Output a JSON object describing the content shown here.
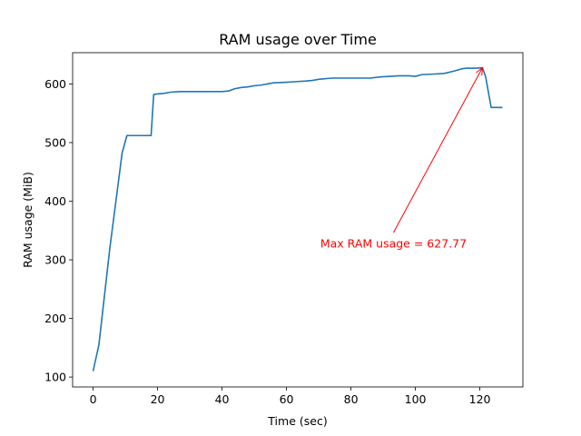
{
  "chart_data": {
    "type": "line",
    "title": "RAM usage over Time",
    "xlabel": "Time (sec)",
    "ylabel": "RAM usage (MiB)",
    "xlim": [
      -6.35,
      133.35
    ],
    "ylim": [
      83.1,
      653.4
    ],
    "xticks": [
      0,
      20,
      40,
      60,
      80,
      100,
      120
    ],
    "yticks": [
      100,
      200,
      300,
      400,
      500,
      600
    ],
    "grid": false,
    "series": [
      {
        "color": "#1f77b4",
        "x": [
          0,
          1.8,
          5.2,
          9,
          10.5,
          14,
          18,
          18.8,
          19.8,
          22,
          24,
          27,
          31,
          36,
          40,
          42,
          44,
          46,
          48,
          50,
          52,
          56,
          60,
          63,
          66,
          68,
          70,
          74,
          78,
          82,
          86,
          89,
          92,
          95,
          98,
          100,
          102,
          106,
          109,
          112,
          114.5,
          116,
          119,
          120.8,
          121.8,
          123.5,
          127
        ],
        "y": [
          110,
          155,
          320,
          482,
          512,
          512,
          512,
          582,
          583,
          584,
          586,
          587,
          587,
          587,
          587,
          588,
          592,
          594,
          595,
          597,
          598,
          602,
          603,
          604,
          605,
          606,
          608,
          610,
          610,
          610,
          610,
          612,
          613,
          614,
          614,
          613,
          616,
          617,
          618,
          622,
          626,
          627,
          627,
          627.77,
          612,
          560,
          560
        ]
      }
    ],
    "annotations": [
      {
        "text": "Max RAM usage = 627.77",
        "text_x": 70.5,
        "text_y": 328,
        "xy": [
          120.8,
          627.77
        ],
        "color": "#ff0000"
      }
    ]
  }
}
